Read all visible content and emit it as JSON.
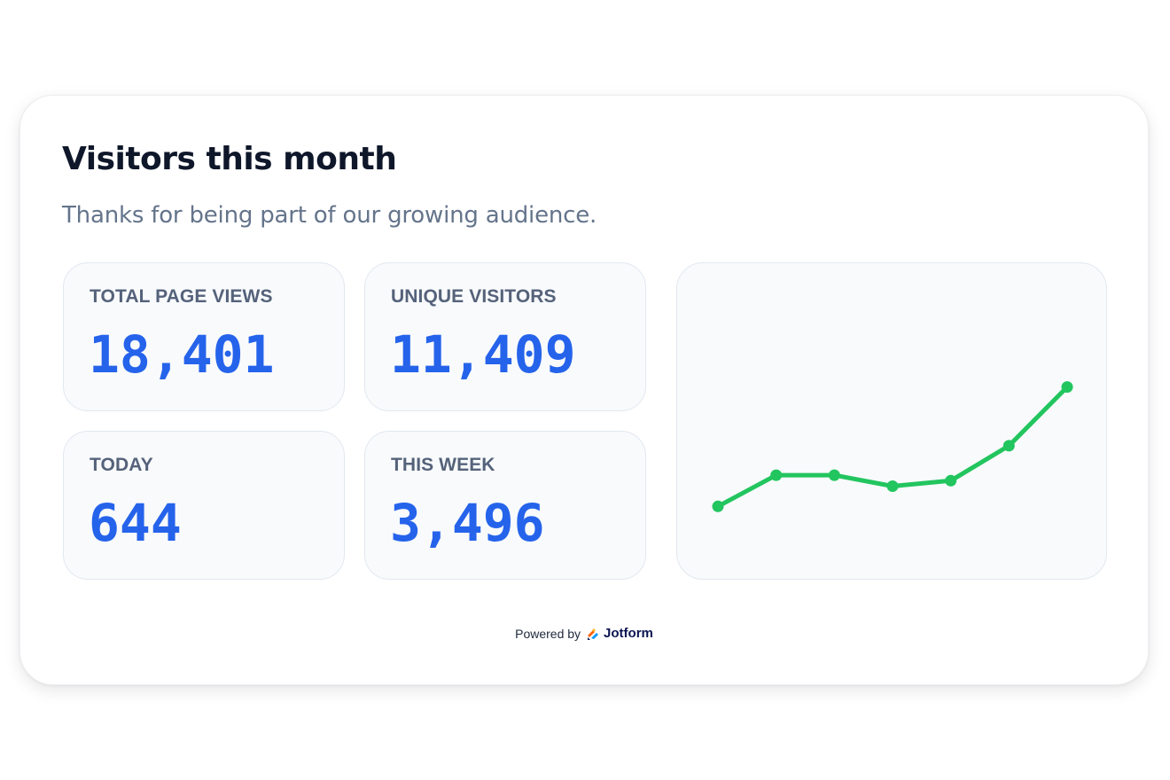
{
  "card": {
    "title": "Visitors this month",
    "subtitle": "Thanks for being part of our growing audience."
  },
  "stats": {
    "total_page_views": {
      "label": "TOTAL PAGE VIEWS",
      "value": "18,401"
    },
    "unique_visitors": {
      "label": "UNIQUE VISITORS",
      "value": "11,409"
    },
    "today": {
      "label": "TODAY",
      "value": "644"
    },
    "this_week": {
      "label": "THIS WEEK",
      "value": "3,496"
    }
  },
  "chart_data": {
    "type": "line",
    "title": "",
    "xlabel": "",
    "ylabel": "",
    "grid": false,
    "legend": "none",
    "x": [
      1,
      2,
      3,
      4,
      5,
      6,
      7
    ],
    "values": [
      24,
      41,
      41,
      35,
      38,
      57,
      89
    ],
    "ylim": [
      0,
      140
    ],
    "color": "#22c55e"
  },
  "footer": {
    "powered_by": "Powered by",
    "brand": "Jotform",
    "brand_icon": "jotform-logo-icon",
    "brand_colors": [
      "#ff6100",
      "#0099ff",
      "#ffb629",
      "#0a1551"
    ]
  },
  "colors": {
    "accent": "#2563eb",
    "title": "#0f172a",
    "muted": "#64748b",
    "panel_bg": "#f8fafc",
    "panel_border": "#e2e8f0"
  }
}
